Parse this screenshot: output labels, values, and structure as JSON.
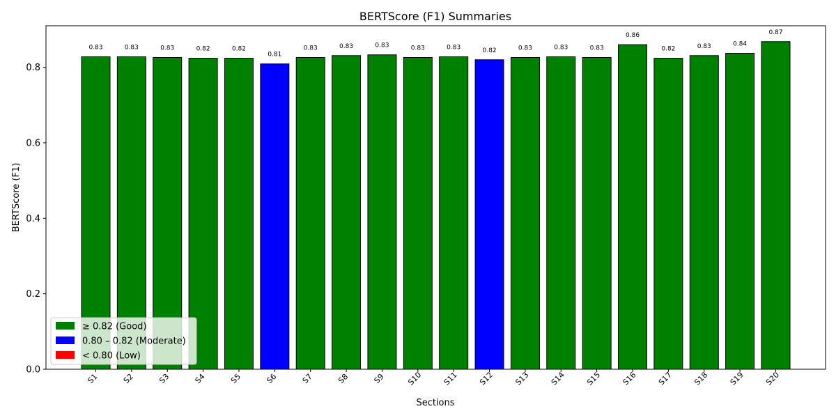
{
  "chart_data": {
    "type": "bar",
    "title": "BERTScore (F1) Summaries",
    "xlabel": "Sections",
    "ylabel": "BERTScore (F1)",
    "ylim": [
      0,
      0.91
    ],
    "yticks": [
      "0.0",
      "0.2",
      "0.4",
      "0.6",
      "0.8"
    ],
    "grid": false,
    "categories": [
      "S1",
      "S2",
      "S3",
      "S4",
      "S5",
      "S6",
      "S7",
      "S8",
      "S9",
      "S10",
      "S11",
      "S12",
      "S13",
      "S14",
      "S15",
      "S16",
      "S17",
      "S18",
      "S19",
      "S20"
    ],
    "values": [
      0.828,
      0.828,
      0.826,
      0.824,
      0.824,
      0.809,
      0.826,
      0.831,
      0.833,
      0.826,
      0.828,
      0.82,
      0.826,
      0.828,
      0.826,
      0.86,
      0.824,
      0.831,
      0.837,
      0.868
    ],
    "value_labels": [
      "0.83",
      "0.83",
      "0.83",
      "0.82",
      "0.82",
      "0.81",
      "0.83",
      "0.83",
      "0.83",
      "0.83",
      "0.83",
      "0.82",
      "0.83",
      "0.83",
      "0.83",
      "0.86",
      "0.82",
      "0.83",
      "0.84",
      "0.87"
    ],
    "bar_colors": [
      "#008000",
      "#008000",
      "#008000",
      "#008000",
      "#008000",
      "#0000ff",
      "#008000",
      "#008000",
      "#008000",
      "#008000",
      "#008000",
      "#0000ff",
      "#008000",
      "#008000",
      "#008000",
      "#008000",
      "#008000",
      "#008000",
      "#008000",
      "#008000"
    ],
    "legend": {
      "position": "lower-left",
      "entries": [
        {
          "label": "≥ 0.82 (Good)",
          "color": "#008000"
        },
        {
          "label": "0.80 – 0.82 (Moderate)",
          "color": "#0000ff"
        },
        {
          "label": "< 0.80 (Low)",
          "color": "#ff0000"
        }
      ]
    }
  }
}
